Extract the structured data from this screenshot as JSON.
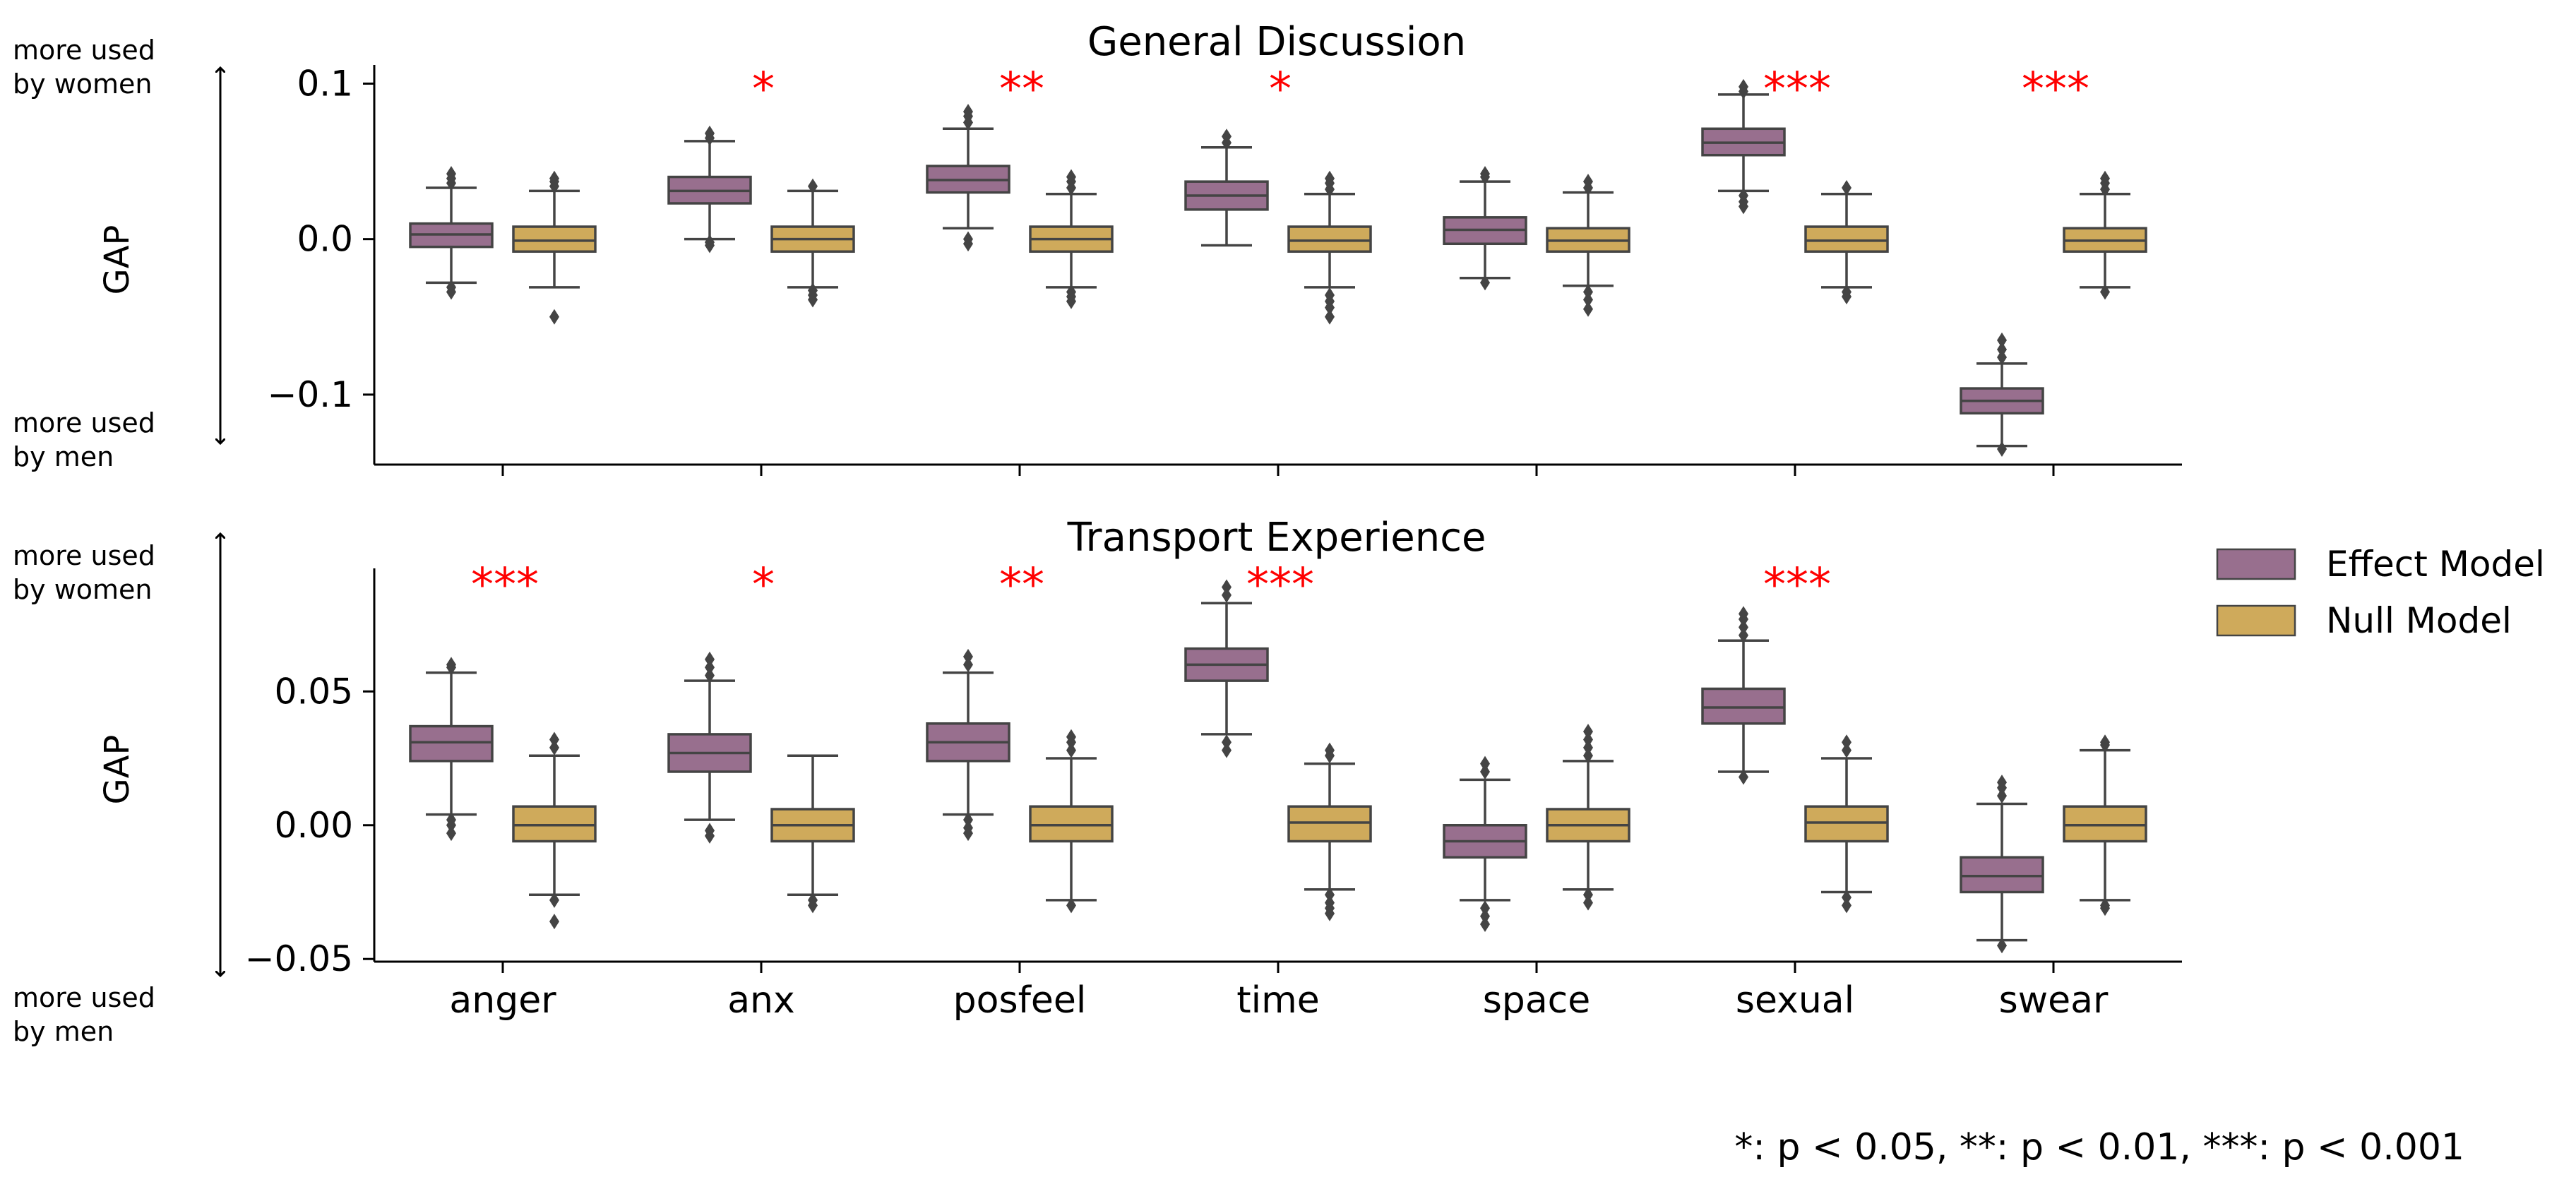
{
  "chart_data": [
    {
      "type": "box",
      "title": "General Discussion",
      "ylabel": "GAP",
      "ylim": [
        -0.145,
        0.112
      ],
      "yticks": [
        0.1,
        0.0,
        -0.1
      ],
      "ytick_labels": [
        "0.1",
        "0.0",
        "−0.1"
      ],
      "direction_labels": {
        "top": [
          "more used",
          "by women"
        ],
        "bottom": [
          "more used",
          "by men"
        ]
      },
      "categories": [
        "anger",
        "anx",
        "posfeel",
        "time",
        "space",
        "sexual",
        "swear"
      ],
      "significance": [
        "",
        "*",
        "**",
        "*",
        "",
        "***",
        "***"
      ],
      "series": [
        {
          "name": "Effect Model",
          "boxes": [
            {
              "q1": -0.005,
              "median": 0.003,
              "q3": 0.01,
              "whislo": -0.028,
              "whishi": 0.033,
              "outliers": [
                -0.031,
                -0.034,
                0.036,
                0.039,
                0.042
              ]
            },
            {
              "q1": 0.023,
              "median": 0.031,
              "q3": 0.04,
              "whislo": 0.0,
              "whishi": 0.063,
              "outliers": [
                -0.002,
                -0.004,
                0.065,
                0.068
              ]
            },
            {
              "q1": 0.03,
              "median": 0.038,
              "q3": 0.047,
              "whislo": 0.007,
              "whishi": 0.071,
              "outliers": [
                0.0,
                -0.003,
                0.075,
                0.079,
                0.082
              ]
            },
            {
              "q1": 0.019,
              "median": 0.028,
              "q3": 0.037,
              "whislo": -0.004,
              "whishi": 0.059,
              "outliers": [
                0.062,
                0.066
              ]
            },
            {
              "q1": -0.003,
              "median": 0.006,
              "q3": 0.014,
              "whislo": -0.025,
              "whishi": 0.037,
              "outliers": [
                -0.028,
                0.04,
                0.042
              ]
            },
            {
              "q1": 0.054,
              "median": 0.062,
              "q3": 0.071,
              "whislo": 0.031,
              "whishi": 0.093,
              "outliers": [
                0.028,
                0.024,
                0.021,
                0.095,
                0.098
              ]
            },
            {
              "q1": -0.112,
              "median": -0.104,
              "q3": -0.096,
              "whislo": -0.133,
              "whishi": -0.08,
              "outliers": [
                -0.076,
                -0.071,
                -0.065,
                -0.135
              ]
            }
          ]
        },
        {
          "name": "Null Model",
          "boxes": [
            {
              "q1": -0.008,
              "median": -0.001,
              "q3": 0.008,
              "whislo": -0.031,
              "whishi": 0.031,
              "outliers": [
                -0.05,
                0.034,
                0.037,
                0.039
              ]
            },
            {
              "q1": -0.008,
              "median": 0.0,
              "q3": 0.008,
              "whislo": -0.031,
              "whishi": 0.031,
              "outliers": [
                -0.033,
                -0.036,
                -0.039,
                0.034
              ]
            },
            {
              "q1": -0.008,
              "median": 0.0,
              "q3": 0.008,
              "whislo": -0.031,
              "whishi": 0.029,
              "outliers": [
                -0.034,
                -0.037,
                -0.04,
                0.033,
                0.037,
                0.04
              ]
            },
            {
              "q1": -0.008,
              "median": -0.001,
              "q3": 0.008,
              "whislo": -0.031,
              "whishi": 0.029,
              "outliers": [
                -0.036,
                -0.04,
                -0.044,
                -0.05,
                0.032,
                0.036,
                0.039
              ]
            },
            {
              "q1": -0.008,
              "median": -0.001,
              "q3": 0.007,
              "whislo": -0.03,
              "whishi": 0.03,
              "outliers": [
                -0.034,
                -0.039,
                -0.045,
                0.033,
                0.037
              ]
            },
            {
              "q1": -0.008,
              "median": -0.001,
              "q3": 0.008,
              "whislo": -0.031,
              "whishi": 0.029,
              "outliers": [
                -0.034,
                -0.037,
                0.033
              ]
            },
            {
              "q1": -0.008,
              "median": -0.001,
              "q3": 0.007,
              "whislo": -0.031,
              "whishi": 0.029,
              "outliers": [
                -0.034,
                0.032,
                0.036,
                0.039
              ]
            }
          ]
        }
      ]
    },
    {
      "type": "box",
      "title": "Transport Experience",
      "ylabel": "GAP",
      "ylim": [
        -0.051,
        0.096
      ],
      "yticks": [
        0.05,
        0.0,
        -0.05
      ],
      "ytick_labels": [
        "0.05",
        "0.00",
        "−0.05"
      ],
      "direction_labels": {
        "top": [
          "more used",
          "by women"
        ],
        "bottom": [
          "more used",
          "by men"
        ]
      },
      "categories": [
        "anger",
        "anx",
        "posfeel",
        "time",
        "space",
        "sexual",
        "swear"
      ],
      "significance": [
        "***",
        "*",
        "**",
        "***",
        "",
        "***",
        ""
      ],
      "series": [
        {
          "name": "Effect Model",
          "boxes": [
            {
              "q1": 0.024,
              "median": 0.031,
              "q3": 0.037,
              "whislo": 0.004,
              "whishi": 0.057,
              "outliers": [
                0.002,
                0.0,
                -0.003,
                0.059,
                0.06
              ]
            },
            {
              "q1": 0.02,
              "median": 0.027,
              "q3": 0.034,
              "whislo": 0.002,
              "whishi": 0.054,
              "outliers": [
                -0.002,
                -0.004,
                0.056,
                0.059,
                0.062
              ]
            },
            {
              "q1": 0.024,
              "median": 0.031,
              "q3": 0.038,
              "whislo": 0.004,
              "whishi": 0.057,
              "outliers": [
                0.002,
                -0.001,
                -0.003,
                0.06,
                0.063
              ]
            },
            {
              "q1": 0.054,
              "median": 0.06,
              "q3": 0.066,
              "whislo": 0.034,
              "whishi": 0.083,
              "outliers": [
                0.031,
                0.028,
                0.086,
                0.089
              ]
            },
            {
              "q1": -0.012,
              "median": -0.006,
              "q3": 0.0,
              "whislo": -0.028,
              "whishi": 0.017,
              "outliers": [
                -0.031,
                -0.034,
                -0.037,
                0.02,
                0.023
              ]
            },
            {
              "q1": 0.038,
              "median": 0.044,
              "q3": 0.051,
              "whislo": 0.02,
              "whishi": 0.069,
              "outliers": [
                0.018,
                0.071,
                0.074,
                0.077,
                0.079
              ]
            },
            {
              "q1": -0.025,
              "median": -0.019,
              "q3": -0.012,
              "whislo": -0.043,
              "whishi": 0.008,
              "outliers": [
                -0.045,
                0.011,
                0.014,
                0.016
              ]
            }
          ]
        },
        {
          "name": "Null Model",
          "boxes": [
            {
              "q1": -0.006,
              "median": 0.0,
              "q3": 0.007,
              "whislo": -0.026,
              "whishi": 0.026,
              "outliers": [
                -0.028,
                -0.036,
                0.029,
                0.032
              ]
            },
            {
              "q1": -0.006,
              "median": 0.0,
              "q3": 0.006,
              "whislo": -0.026,
              "whishi": 0.026,
              "outliers": [
                -0.028,
                -0.03
              ]
            },
            {
              "q1": -0.006,
              "median": 0.0,
              "q3": 0.007,
              "whislo": -0.028,
              "whishi": 0.025,
              "outliers": [
                -0.03,
                0.028,
                0.031,
                0.033
              ]
            },
            {
              "q1": -0.006,
              "median": 0.001,
              "q3": 0.007,
              "whislo": -0.024,
              "whishi": 0.023,
              "outliers": [
                -0.026,
                -0.029,
                -0.031,
                -0.033,
                0.026,
                0.028
              ]
            },
            {
              "q1": -0.006,
              "median": 0.0,
              "q3": 0.006,
              "whislo": -0.024,
              "whishi": 0.024,
              "outliers": [
                -0.026,
                -0.029,
                0.026,
                0.029,
                0.032,
                0.035
              ]
            },
            {
              "q1": -0.006,
              "median": 0.001,
              "q3": 0.007,
              "whislo": -0.025,
              "whishi": 0.025,
              "outliers": [
                -0.027,
                -0.03,
                0.028,
                0.031
              ]
            },
            {
              "q1": -0.006,
              "median": 0.0,
              "q3": 0.007,
              "whislo": -0.028,
              "whishi": 0.028,
              "outliers": [
                -0.03,
                -0.031,
                0.03,
                0.031
              ]
            }
          ]
        }
      ]
    }
  ],
  "legend": {
    "placement": "right",
    "items": [
      {
        "label": "Effect Model",
        "color": "#986F8E"
      },
      {
        "label": "Null Model",
        "color": "#CFAA5B"
      }
    ]
  },
  "colors": {
    "effect": "#986F8E",
    "null": "#CFAA5B",
    "edge": "#444444",
    "significance": "#ff0000"
  },
  "footnote": "*: p < 0.05, **: p < 0.01, ***: p < 0.001"
}
